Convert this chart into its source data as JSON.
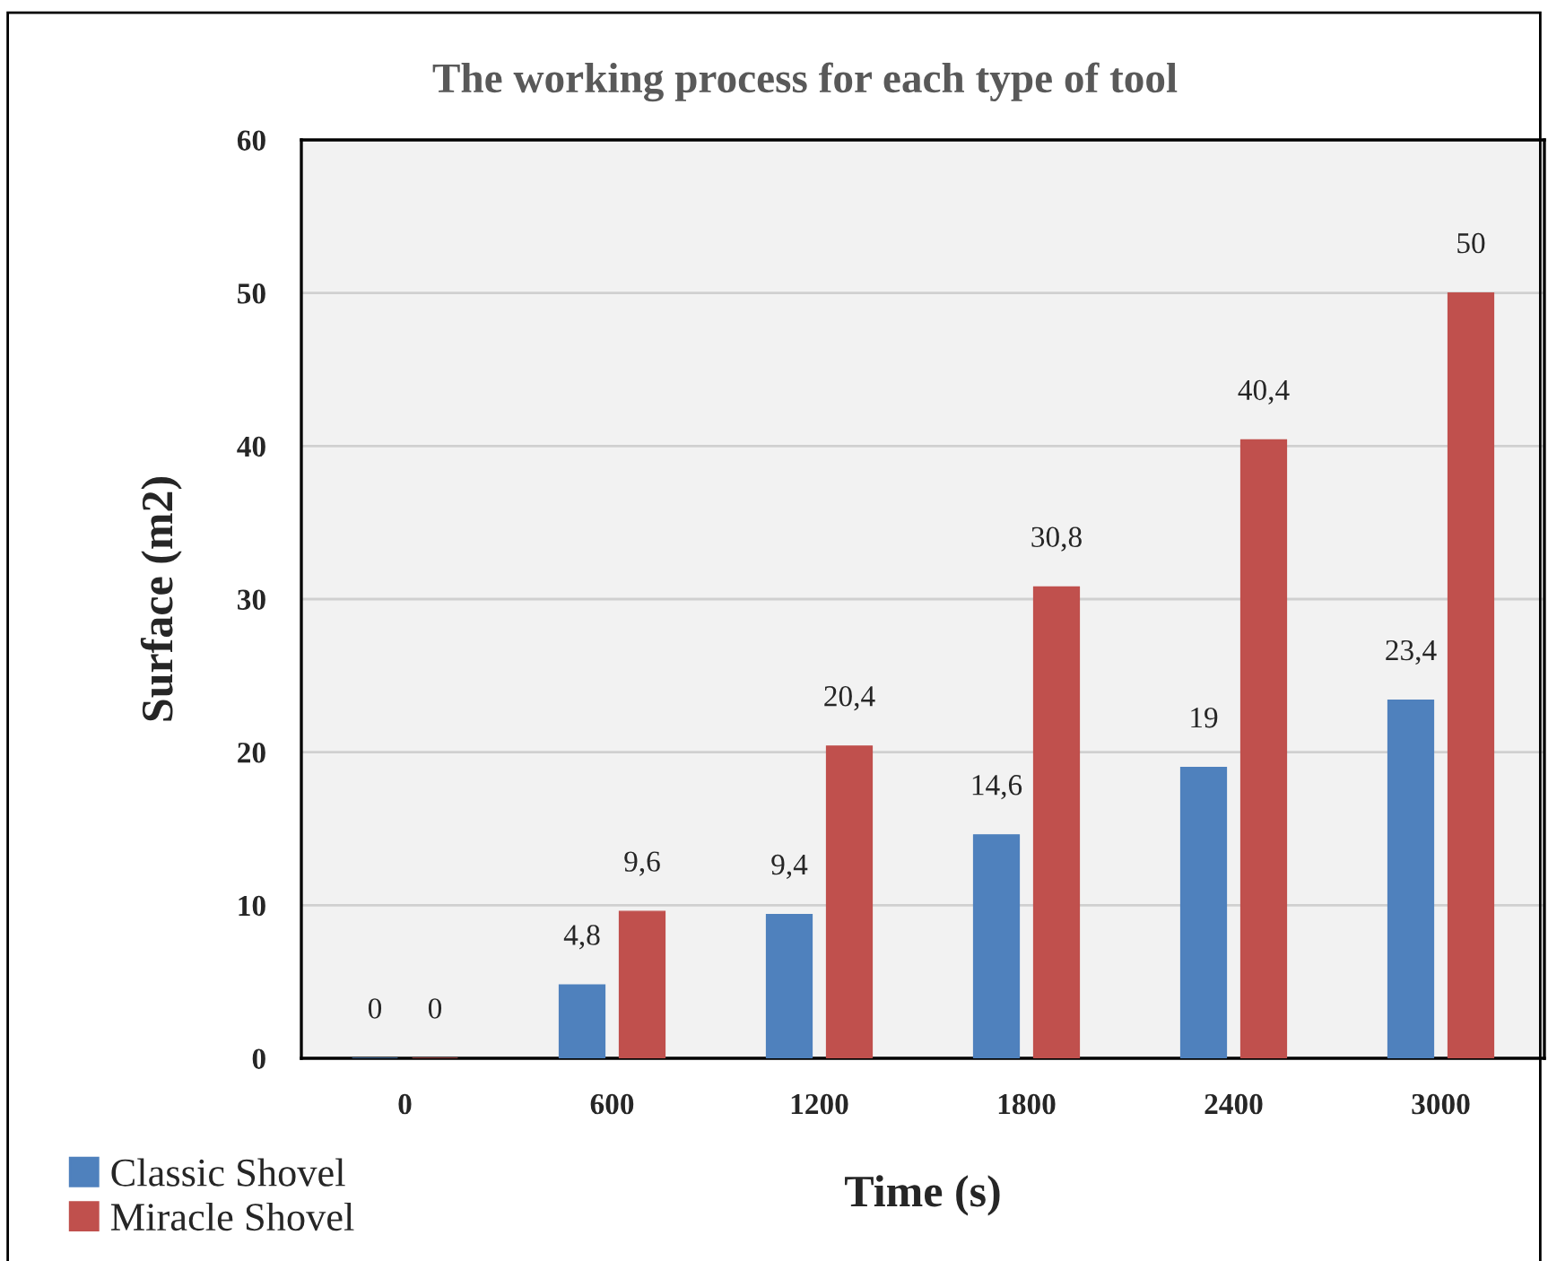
{
  "chart_data": {
    "type": "bar",
    "title": "The working process for each type of tool",
    "xlabel": "Time (s)",
    "ylabel": "Surface (m2)",
    "categories": [
      "0",
      "600",
      "1200",
      "1800",
      "2400",
      "3000"
    ],
    "series": [
      {
        "name": "Classic Shovel",
        "color": "#4f81bd",
        "values": [
          0,
          4.8,
          9.4,
          14.6,
          19,
          23.4
        ],
        "value_labels": [
          "0",
          "4,8",
          "9,4",
          "14,6",
          "19",
          "23,4"
        ]
      },
      {
        "name": "Miracle Shovel",
        "color": "#c0504d",
        "values": [
          0,
          9.6,
          20.4,
          30.8,
          40.4,
          50
        ],
        "value_labels": [
          "0",
          "9,6",
          "20,4",
          "30,8",
          "40,4",
          "50"
        ]
      }
    ],
    "ylim": [
      0,
      60
    ],
    "yticks": [
      0,
      10,
      20,
      30,
      40,
      50,
      60
    ],
    "grid": "y",
    "legend": "bottom left"
  }
}
